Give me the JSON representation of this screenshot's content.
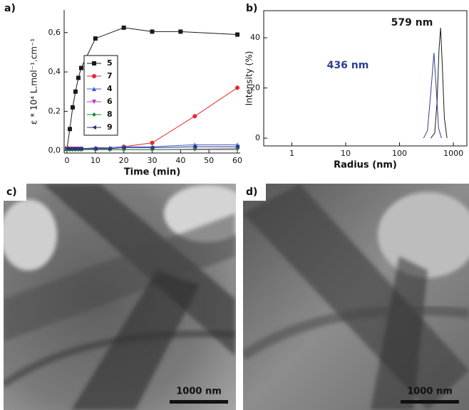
{
  "panels": [
    "a)",
    "b)",
    "c)",
    "d)"
  ],
  "chart_data": [
    {
      "type": "line",
      "xlabel": "Time (min)",
      "ylabel": "ε * 10⁴ L.mol⁻¹.cm⁻¹",
      "xlim": [
        -1,
        61
      ],
      "xticks": [
        0,
        10,
        20,
        30,
        40,
        50,
        60
      ],
      "ylim": [
        -0.012,
        0.715
      ],
      "yticks": [
        {
          "value": 0,
          "label": "0,0"
        },
        {
          "value": 0.2,
          "label": "0,2"
        },
        {
          "value": 0.4,
          "label": "0,4"
        },
        {
          "value": 0.6,
          "label": "0,6"
        }
      ],
      "series": [
        {
          "name": "5",
          "color": "#1a1a1a",
          "marker": "square",
          "x": [
            0,
            1,
            2,
            3,
            4,
            5,
            10,
            20,
            30,
            40,
            60
          ],
          "values": [
            0.01,
            0.11,
            0.22,
            0.3,
            0.37,
            0.42,
            0.57,
            0.625,
            0.605,
            0.605,
            0.59
          ]
        },
        {
          "name": "7",
          "color": "#e8262b",
          "marker": "circle",
          "x": [
            0,
            1,
            2,
            3,
            4,
            5,
            10,
            20,
            30,
            45,
            60
          ],
          "values": [
            0.01,
            0.01,
            0.01,
            0.01,
            0.01,
            0.01,
            0.01,
            0.02,
            0.04,
            0.175,
            0.32
          ]
        },
        {
          "name": "4",
          "color": "#3a5fc8",
          "marker": "triangle-up",
          "x": [
            0,
            1,
            2,
            3,
            4,
            5,
            10,
            15,
            20,
            30,
            45,
            60
          ],
          "values": [
            0.01,
            0.01,
            0.01,
            0.01,
            0.01,
            0.01,
            0.015,
            0.015,
            0.02,
            0.02,
            0.03,
            0.03
          ]
        },
        {
          "name": "6",
          "color": "#c23bc2",
          "marker": "triangle-down",
          "x": [
            0,
            1,
            2,
            3,
            4,
            5,
            10,
            15,
            20,
            30,
            45,
            60
          ],
          "values": [
            0.005,
            0.005,
            0.005,
            0.005,
            0.005,
            0.005,
            0.005,
            0.005,
            0.005,
            0.005,
            0.005,
            0.005
          ]
        },
        {
          "name": "8",
          "color": "#1f8a3a",
          "marker": "diamond",
          "x": [
            0,
            1,
            2,
            3,
            4,
            5,
            10,
            15,
            20,
            30,
            45,
            60
          ],
          "values": [
            0.005,
            0.005,
            0.005,
            0.005,
            0.005,
            0.005,
            0.005,
            0.005,
            0.005,
            0.005,
            0.008,
            0.01
          ]
        },
        {
          "name": "9",
          "color": "#2b2f7a",
          "marker": "triangle-left",
          "x": [
            0,
            1,
            2,
            3,
            4,
            5,
            10,
            15,
            20,
            30,
            45,
            60
          ],
          "values": [
            0.01,
            0.01,
            0.01,
            0.01,
            0.01,
            0.01,
            0.01,
            0.01,
            0.015,
            0.015,
            0.02,
            0.02
          ]
        }
      ]
    },
    {
      "type": "line",
      "xlabel": "Radius (nm)",
      "ylabel": "Intensity (%)",
      "xscale": "log",
      "xlim": [
        0.3,
        1780
      ],
      "xticks": [
        1,
        10,
        100,
        1000
      ],
      "ylim": [
        -3.1,
        50.8
      ],
      "yticks": [
        0,
        20,
        40
      ],
      "annotations": [
        "579 nm",
        "436 nm"
      ],
      "series": [
        {
          "color": "#1a1a1a",
          "x": [
            380,
            450,
            500,
            540,
            579,
            620,
            680,
            760
          ],
          "values": [
            0,
            2,
            15,
            35,
            44,
            30,
            8,
            0
          ]
        },
        {
          "color": "#2e3e8f",
          "x": [
            280,
            330,
            380,
            436,
            480,
            530,
            600
          ],
          "values": [
            0,
            3,
            18,
            34,
            20,
            4,
            0
          ]
        }
      ]
    }
  ],
  "images": [
    {
      "scale_bar": "1000 nm"
    },
    {
      "scale_bar": "1000 nm"
    }
  ]
}
